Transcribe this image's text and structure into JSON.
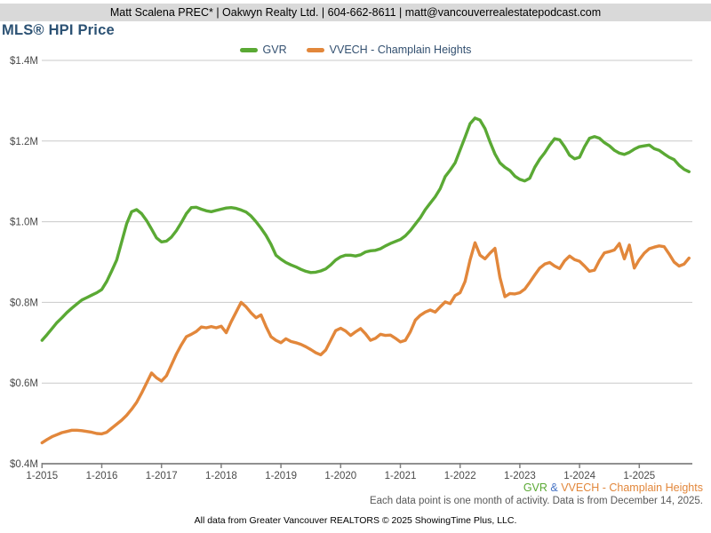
{
  "header": {
    "contact_line": "Matt Scalena PREC* | Oakwyn Realty Ltd. | 604-662-8611 | matt@vancouverrealestatepodcast.com"
  },
  "title": "MLS® HPI Price",
  "title_color": "#2c5274",
  "legend": [
    {
      "label": "GVR",
      "color": "#5aa934"
    },
    {
      "label": "VVECH - Champlain Heights",
      "color": "#e2873b"
    }
  ],
  "legend_text_color": "#335070",
  "footer": {
    "series_note_parts": [
      {
        "text": "GVR",
        "color": "#5aa934"
      },
      {
        "text": " & ",
        "color": "#4472c4"
      },
      {
        "text": "VVECH - Champlain Heights",
        "color": "#e2873b"
      }
    ],
    "data_note": "Each data point is one month of activity. Data is from December 14, 2025.",
    "attribution": "All data from Greater Vancouver REALTORS © 2025 ShowingTime Plus, LLC."
  },
  "chart_data": {
    "type": "line",
    "title": "MLS® HPI Price",
    "y_unit": "CAD millions",
    "ylim": [
      0.4,
      1.4
    ],
    "y_ticks": [
      1.4,
      1.2,
      1.0,
      0.8,
      0.6,
      0.4
    ],
    "y_tick_labels": [
      "$1.4M",
      "$1.2M",
      "$1.0M",
      "$0.8M",
      "$0.6M",
      "$0.4M"
    ],
    "x_tick_labels": [
      "1-2015",
      "1-2016",
      "1-2017",
      "1-2018",
      "1-2019",
      "1-2020",
      "1-2021",
      "1-2022",
      "1-2023",
      "1-2024",
      "1-2025"
    ],
    "x_start": "2015-01",
    "x_end": "2025-11",
    "x_step_months": 1,
    "grid": "horizontal",
    "legend_position": "top-center",
    "grid_color": "#c9c9c9",
    "axis_color": "#808080",
    "tick_label_color": "#4a4a4a",
    "series": [
      {
        "name": "GVR",
        "color": "#5aa934",
        "values": [
          0.706,
          0.72,
          0.735,
          0.75,
          0.762,
          0.775,
          0.786,
          0.796,
          0.806,
          0.812,
          0.818,
          0.824,
          0.832,
          0.852,
          0.878,
          0.905,
          0.95,
          0.995,
          1.025,
          1.03,
          1.02,
          1.003,
          0.982,
          0.96,
          0.95,
          0.952,
          0.962,
          0.978,
          0.998,
          1.02,
          1.035,
          1.036,
          1.031,
          1.027,
          1.025,
          1.028,
          1.031,
          1.034,
          1.035,
          1.033,
          1.029,
          1.024,
          1.014,
          1.0,
          0.984,
          0.966,
          0.944,
          0.917,
          0.907,
          0.899,
          0.893,
          0.888,
          0.882,
          0.877,
          0.874,
          0.875,
          0.878,
          0.883,
          0.893,
          0.905,
          0.913,
          0.917,
          0.917,
          0.915,
          0.918,
          0.925,
          0.928,
          0.929,
          0.933,
          0.94,
          0.946,
          0.951,
          0.956,
          0.965,
          0.978,
          0.994,
          1.01,
          1.03,
          1.046,
          1.062,
          1.082,
          1.112,
          1.128,
          1.146,
          1.178,
          1.21,
          1.243,
          1.257,
          1.252,
          1.231,
          1.198,
          1.168,
          1.146,
          1.135,
          1.127,
          1.113,
          1.105,
          1.101,
          1.108,
          1.135,
          1.155,
          1.171,
          1.19,
          1.206,
          1.203,
          1.186,
          1.165,
          1.156,
          1.16,
          1.186,
          1.207,
          1.211,
          1.207,
          1.196,
          1.188,
          1.177,
          1.17,
          1.167,
          1.172,
          1.18,
          1.186,
          1.188,
          1.19,
          1.181,
          1.177,
          1.168,
          1.16,
          1.154,
          1.14,
          1.13,
          1.124
        ]
      },
      {
        "name": "VVECH - Champlain Heights",
        "color": "#e2873b",
        "values": [
          0.452,
          0.46,
          0.467,
          0.472,
          0.477,
          0.48,
          0.483,
          0.483,
          0.482,
          0.48,
          0.478,
          0.475,
          0.474,
          0.478,
          0.488,
          0.498,
          0.508,
          0.52,
          0.535,
          0.552,
          0.575,
          0.6,
          0.625,
          0.613,
          0.605,
          0.618,
          0.645,
          0.672,
          0.695,
          0.715,
          0.721,
          0.728,
          0.739,
          0.737,
          0.74,
          0.737,
          0.741,
          0.725,
          0.752,
          0.776,
          0.8,
          0.789,
          0.774,
          0.762,
          0.769,
          0.74,
          0.715,
          0.706,
          0.7,
          0.71,
          0.703,
          0.7,
          0.696,
          0.69,
          0.683,
          0.675,
          0.67,
          0.682,
          0.706,
          0.73,
          0.736,
          0.729,
          0.718,
          0.727,
          0.735,
          0.722,
          0.706,
          0.711,
          0.721,
          0.718,
          0.719,
          0.711,
          0.702,
          0.706,
          0.727,
          0.756,
          0.768,
          0.776,
          0.781,
          0.776,
          0.789,
          0.801,
          0.797,
          0.817,
          0.824,
          0.852,
          0.905,
          0.948,
          0.917,
          0.908,
          0.922,
          0.934,
          0.862,
          0.814,
          0.822,
          0.821,
          0.824,
          0.833,
          0.85,
          0.868,
          0.885,
          0.895,
          0.899,
          0.89,
          0.884,
          0.903,
          0.915,
          0.906,
          0.902,
          0.89,
          0.877,
          0.88,
          0.904,
          0.923,
          0.926,
          0.93,
          0.946,
          0.908,
          0.942,
          0.885,
          0.906,
          0.922,
          0.933,
          0.937,
          0.94,
          0.938,
          0.92,
          0.9,
          0.89,
          0.895,
          0.91
        ]
      }
    ]
  }
}
